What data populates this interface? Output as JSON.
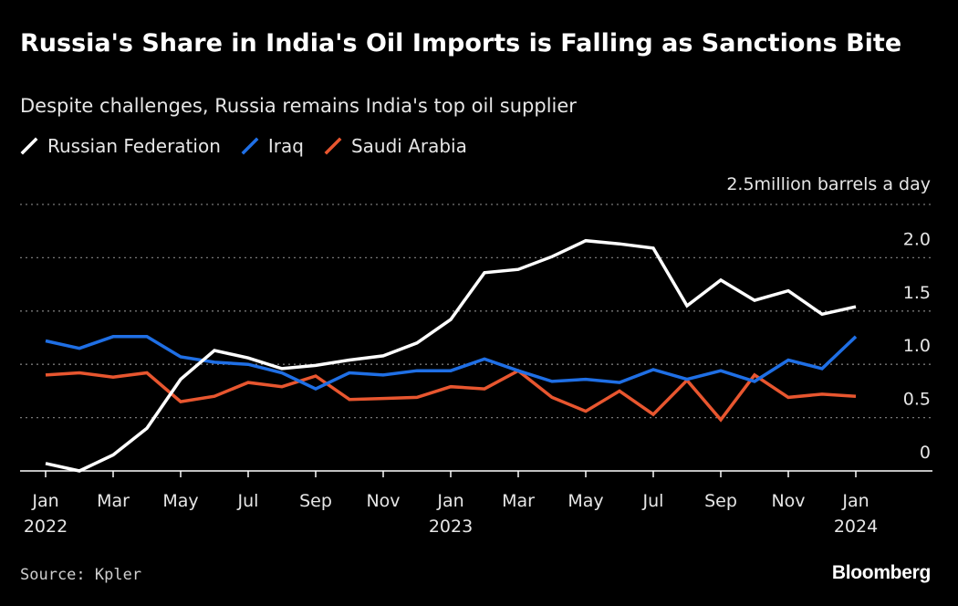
{
  "header": {
    "title": "Russia's Share in India's Oil Imports is Falling as Sanctions Bite",
    "subtitle": "Despite challenges, Russia remains India's top oil supplier"
  },
  "footer": {
    "source": "Source: Kpler",
    "brand": "Bloomberg"
  },
  "colors": {
    "background": "#000000",
    "russia": "#ffffff",
    "iraq": "#1f6fe5",
    "saudi": "#e8562f",
    "grid": "#777777"
  },
  "chart_data": {
    "type": "line",
    "title": "Russia's Share in India's Oil Imports is Falling as Sanctions Bite",
    "subtitle": "Despite challenges, Russia remains India's top oil supplier",
    "unit": "million barrels a day",
    "ylim": [
      0,
      2.5
    ],
    "y_ticks": [
      0,
      0.5,
      1.0,
      1.5,
      2.0,
      2.5
    ],
    "y_tick_labels": [
      "0",
      "0.5",
      "1.0",
      "1.5",
      "2.0",
      "2.5"
    ],
    "grid": "horizontal dotted",
    "legend_position": "top-left",
    "x": [
      "2022-01",
      "2022-02",
      "2022-03",
      "2022-04",
      "2022-05",
      "2022-06",
      "2022-07",
      "2022-08",
      "2022-09",
      "2022-10",
      "2022-11",
      "2022-12",
      "2023-01",
      "2023-02",
      "2023-03",
      "2023-04",
      "2023-05",
      "2023-06",
      "2023-07",
      "2023-08",
      "2023-09",
      "2023-10",
      "2023-11",
      "2023-12",
      "2024-01"
    ],
    "x_tick_labels": [
      {
        "x": "2022-01",
        "month": "Jan",
        "year": "2022"
      },
      {
        "x": "2022-03",
        "month": "Mar",
        "year": ""
      },
      {
        "x": "2022-05",
        "month": "May",
        "year": ""
      },
      {
        "x": "2022-07",
        "month": "Jul",
        "year": ""
      },
      {
        "x": "2022-09",
        "month": "Sep",
        "year": ""
      },
      {
        "x": "2022-11",
        "month": "Nov",
        "year": ""
      },
      {
        "x": "2023-01",
        "month": "Jan",
        "year": "2023"
      },
      {
        "x": "2023-03",
        "month": "Mar",
        "year": ""
      },
      {
        "x": "2023-05",
        "month": "May",
        "year": ""
      },
      {
        "x": "2023-07",
        "month": "Jul",
        "year": ""
      },
      {
        "x": "2023-09",
        "month": "Sep",
        "year": ""
      },
      {
        "x": "2023-11",
        "month": "Nov",
        "year": ""
      },
      {
        "x": "2024-01",
        "month": "Jan",
        "year": "2024"
      }
    ],
    "series": [
      {
        "name": "Russian Federation",
        "color": "#ffffff",
        "values": [
          0.07,
          0.0,
          0.15,
          0.4,
          0.86,
          1.13,
          1.06,
          0.96,
          0.99,
          1.04,
          1.08,
          1.2,
          1.42,
          1.86,
          1.89,
          2.01,
          2.16,
          2.13,
          2.09,
          1.55,
          1.79,
          1.6,
          1.69,
          1.47,
          1.54
        ]
      },
      {
        "name": "Iraq",
        "color": "#1f6fe5",
        "values": [
          1.22,
          1.15,
          1.26,
          1.26,
          1.07,
          1.02,
          1.0,
          0.92,
          0.77,
          0.92,
          0.9,
          0.94,
          0.94,
          1.05,
          0.94,
          0.84,
          0.86,
          0.83,
          0.95,
          0.86,
          0.94,
          0.84,
          1.04,
          0.96,
          1.26
        ]
      },
      {
        "name": "Saudi Arabia",
        "color": "#e8562f",
        "values": [
          0.9,
          0.92,
          0.88,
          0.92,
          0.65,
          0.7,
          0.83,
          0.79,
          0.89,
          0.67,
          0.68,
          0.69,
          0.79,
          0.77,
          0.94,
          0.69,
          0.56,
          0.75,
          0.53,
          0.85,
          0.48,
          0.9,
          0.69,
          0.72,
          0.7
        ]
      }
    ]
  }
}
